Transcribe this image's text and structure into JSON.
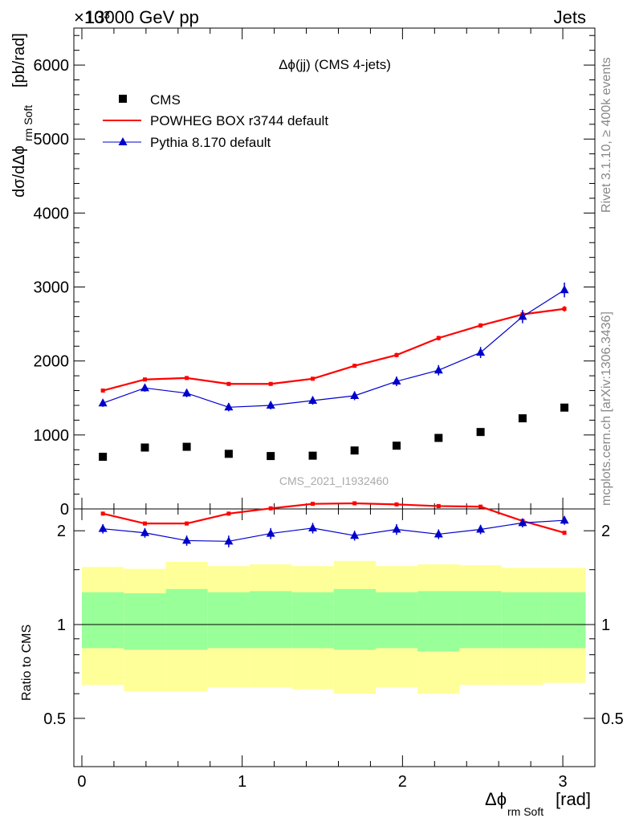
{
  "header": {
    "energy_label": "13000 GeV pp",
    "category_label": "Jets",
    "exponent_label": "×10³"
  },
  "side_labels": {
    "rivet": "Rivet 3.1.10, ≥ 400k events",
    "mcplots": "mcplots.cern.ch [arXiv:1306.3436]"
  },
  "watermark": "CMS_2021_I1932460",
  "chart_data": [
    {
      "type": "scatter",
      "panel": "main",
      "title": "Δϕ(jj) (CMS 4-jets)",
      "ylabel_main": "dσ/dΔϕ",
      "ylabel_sub": "rm Soft",
      "ylabel_unit": "[pb/rad]",
      "ylim": [
        0,
        6500
      ],
      "yticks": [
        0,
        1000,
        2000,
        3000,
        4000,
        5000,
        6000
      ],
      "ytick_labels": [
        "0",
        "1000",
        "2000",
        "3000",
        "4000",
        "5000",
        "6000"
      ],
      "xlim": [
        -0.05,
        3.2
      ],
      "legend_position": "top-left",
      "series": [
        {
          "name": "CMS",
          "color": "#000000",
          "marker": "square",
          "x": [
            0.131,
            0.393,
            0.654,
            0.916,
            1.178,
            1.44,
            1.701,
            1.963,
            2.225,
            2.487,
            2.749,
            3.01
          ],
          "y": [
            705,
            830,
            840,
            745,
            715,
            720,
            790,
            855,
            960,
            1040,
            1225,
            1370
          ]
        },
        {
          "name": "POWHEG BOX r3744 default",
          "color": "#ff0000",
          "marker": "line",
          "x": [
            0.131,
            0.393,
            0.654,
            0.916,
            1.178,
            1.44,
            1.701,
            1.963,
            2.225,
            2.487,
            2.749,
            3.01
          ],
          "y": [
            1600,
            1750,
            1770,
            1690,
            1690,
            1760,
            1935,
            2080,
            2310,
            2480,
            2630,
            2705
          ],
          "err": [
            25,
            25,
            25,
            25,
            25,
            25,
            25,
            30,
            30,
            30,
            35,
            35
          ]
        },
        {
          "name": "Pythia 8.170 default",
          "color": "#0000cc",
          "marker": "triangle",
          "x": [
            0.131,
            0.393,
            0.654,
            0.916,
            1.178,
            1.44,
            1.701,
            1.963,
            2.225,
            2.487,
            2.749,
            3.01
          ],
          "y": [
            1430,
            1635,
            1565,
            1375,
            1400,
            1465,
            1530,
            1725,
            1875,
            2115,
            2600,
            2960
          ],
          "err": [
            50,
            50,
            55,
            55,
            55,
            55,
            60,
            65,
            70,
            75,
            90,
            100
          ]
        }
      ]
    },
    {
      "type": "scatter",
      "panel": "ratio",
      "ylabel": "Ratio to CMS",
      "yscale": "log",
      "ylim": [
        0.35,
        2.35
      ],
      "yticks": [
        0.5,
        1,
        2
      ],
      "ytick_labels": [
        "0.5",
        "1",
        "2"
      ],
      "xlabel_main": "Δϕ",
      "xlabel_sub": "rm Soft",
      "xlabel_unit": "[rad]",
      "xlim": [
        -0.05,
        3.2
      ],
      "xticks": [
        0,
        1,
        2,
        3
      ],
      "xtick_labels": [
        "0",
        "1",
        "2",
        "3"
      ],
      "bin_edges": [
        0,
        0.262,
        0.524,
        0.785,
        1.047,
        1.309,
        1.571,
        1.833,
        2.094,
        2.356,
        2.618,
        2.88,
        3.142
      ],
      "band_inner_low": [
        0.84,
        0.83,
        0.83,
        0.84,
        0.84,
        0.84,
        0.83,
        0.84,
        0.82,
        0.84,
        0.84,
        0.84
      ],
      "band_inner_high": [
        1.27,
        1.26,
        1.3,
        1.27,
        1.28,
        1.27,
        1.3,
        1.27,
        1.28,
        1.28,
        1.27,
        1.27
      ],
      "band_outer_low": [
        0.64,
        0.61,
        0.61,
        0.63,
        0.63,
        0.62,
        0.6,
        0.63,
        0.6,
        0.64,
        0.64,
        0.65
      ],
      "band_outer_high": [
        1.53,
        1.51,
        1.59,
        1.54,
        1.56,
        1.54,
        1.6,
        1.54,
        1.56,
        1.55,
        1.52,
        1.52
      ],
      "band_inner_color": "#99ff99",
      "band_outer_color": "#ffff99",
      "series": [
        {
          "name": "POWHEG BOX r3744 default",
          "color": "#ff0000",
          "x": [
            0.131,
            0.393,
            0.654,
            0.916,
            1.178,
            1.44,
            1.701,
            1.963,
            2.225,
            2.487,
            2.749,
            3.01
          ],
          "y": [
            2.27,
            2.11,
            2.11,
            2.27,
            2.36,
            2.44,
            2.45,
            2.43,
            2.4,
            2.39,
            2.15,
            1.97
          ],
          "err": [
            0.03,
            0.03,
            0.03,
            0.03,
            0.03,
            0.03,
            0.03,
            0.03,
            0.03,
            0.03,
            0.03,
            0.03
          ]
        },
        {
          "name": "Pythia 8.170 default",
          "color": "#0000cc",
          "x": [
            0.131,
            0.393,
            0.654,
            0.916,
            1.178,
            1.44,
            1.701,
            1.963,
            2.225,
            2.487,
            2.749,
            3.01
          ],
          "y": [
            2.03,
            1.97,
            1.86,
            1.85,
            1.96,
            2.04,
            1.93,
            2.02,
            1.95,
            2.02,
            2.12,
            2.16
          ],
          "err": [
            0.07,
            0.07,
            0.07,
            0.08,
            0.08,
            0.08,
            0.07,
            0.08,
            0.07,
            0.07,
            0.07,
            0.07
          ]
        }
      ]
    }
  ]
}
